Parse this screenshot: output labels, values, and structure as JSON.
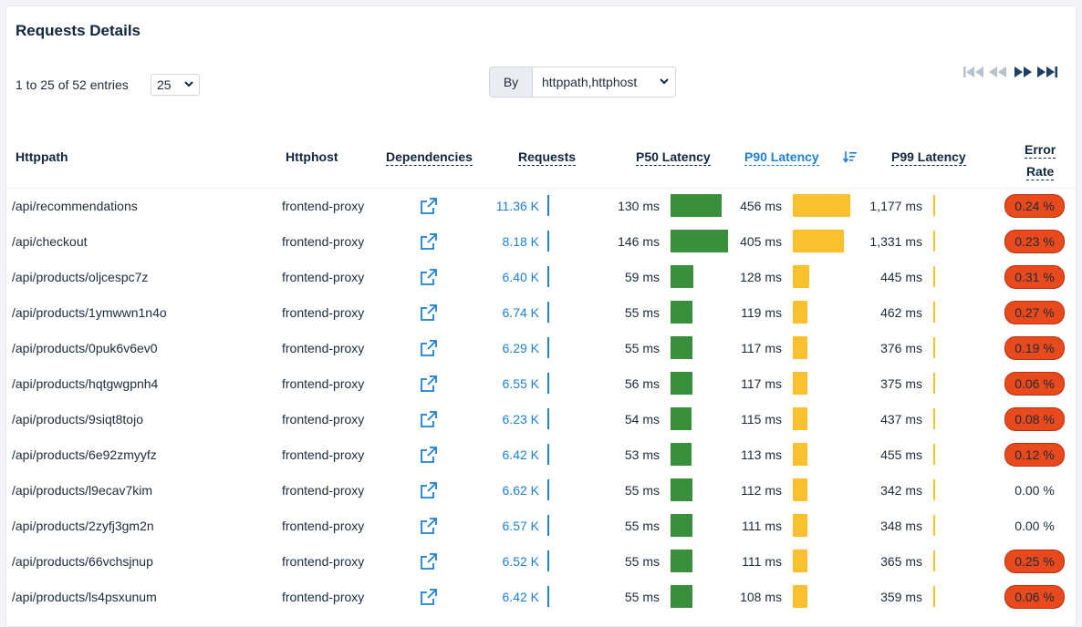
{
  "title": "Requests Details",
  "entries_text": "1 to 25 of 52 entries",
  "page_size": "25",
  "group_by": {
    "label": "By",
    "value": "httppath,httphost"
  },
  "columns": {
    "path": "Httppath",
    "host": "Httphost",
    "deps": "Dependencies",
    "requests": "Requests",
    "p50": "P50 Latency",
    "p90": "P90 Latency",
    "p99": "P99 Latency",
    "error_line1": "Error",
    "error_line2": "Rate"
  },
  "sorted_column": "p90",
  "colors": {
    "accent": "#1f7fd1",
    "p50": "#3a8f3d",
    "p90": "#fbc02d",
    "error": "#e8491d"
  },
  "icons": {
    "dependency": "external-link-icon",
    "sort": "sort-desc-icon"
  },
  "rows": [
    {
      "path": "/api/recommendations",
      "host": "frontend-proxy",
      "requests": "11.36 K",
      "p50": "130 ms",
      "p50_ms": 130,
      "p90": "456 ms",
      "p90_ms": 456,
      "p99": "1,177 ms",
      "error": "0.24 %",
      "error_high": true
    },
    {
      "path": "/api/checkout",
      "host": "frontend-proxy",
      "requests": "8.18 K",
      "p50": "146 ms",
      "p50_ms": 146,
      "p90": "405 ms",
      "p90_ms": 405,
      "p99": "1,331 ms",
      "error": "0.23 %",
      "error_high": true
    },
    {
      "path": "/api/products/oljcespc7z",
      "host": "frontend-proxy",
      "requests": "6.40 K",
      "p50": "59 ms",
      "p50_ms": 59,
      "p90": "128 ms",
      "p90_ms": 128,
      "p99": "445 ms",
      "error": "0.31 %",
      "error_high": true
    },
    {
      "path": "/api/products/1ymwwn1n4o",
      "host": "frontend-proxy",
      "requests": "6.74 K",
      "p50": "55 ms",
      "p50_ms": 55,
      "p90": "119 ms",
      "p90_ms": 119,
      "p99": "462 ms",
      "error": "0.27 %",
      "error_high": true
    },
    {
      "path": "/api/products/0puk6v6ev0",
      "host": "frontend-proxy",
      "requests": "6.29 K",
      "p50": "55 ms",
      "p50_ms": 55,
      "p90": "117 ms",
      "p90_ms": 117,
      "p99": "376 ms",
      "error": "0.19 %",
      "error_high": true
    },
    {
      "path": "/api/products/hqtgwgpnh4",
      "host": "frontend-proxy",
      "requests": "6.55 K",
      "p50": "56 ms",
      "p50_ms": 56,
      "p90": "117 ms",
      "p90_ms": 117,
      "p99": "375 ms",
      "error": "0.06 %",
      "error_high": true
    },
    {
      "path": "/api/products/9siqt8tojo",
      "host": "frontend-proxy",
      "requests": "6.23 K",
      "p50": "54 ms",
      "p50_ms": 54,
      "p90": "115 ms",
      "p90_ms": 115,
      "p99": "437 ms",
      "error": "0.08 %",
      "error_high": true
    },
    {
      "path": "/api/products/6e92zmyyfz",
      "host": "frontend-proxy",
      "requests": "6.42 K",
      "p50": "53 ms",
      "p50_ms": 53,
      "p90": "113 ms",
      "p90_ms": 113,
      "p99": "455 ms",
      "error": "0.12 %",
      "error_high": true
    },
    {
      "path": "/api/products/l9ecav7kim",
      "host": "frontend-proxy",
      "requests": "6.62 K",
      "p50": "55 ms",
      "p50_ms": 55,
      "p90": "112 ms",
      "p90_ms": 112,
      "p99": "342 ms",
      "error": "0.00 %",
      "error_high": false
    },
    {
      "path": "/api/products/2zyfj3gm2n",
      "host": "frontend-proxy",
      "requests": "6.57 K",
      "p50": "55 ms",
      "p50_ms": 55,
      "p90": "111 ms",
      "p90_ms": 111,
      "p99": "348 ms",
      "error": "0.00 %",
      "error_high": false
    },
    {
      "path": "/api/products/66vchsjnup",
      "host": "frontend-proxy",
      "requests": "6.52 K",
      "p50": "55 ms",
      "p50_ms": 55,
      "p90": "111 ms",
      "p90_ms": 111,
      "p99": "365 ms",
      "error": "0.25 %",
      "error_high": true
    },
    {
      "path": "/api/products/ls4psxunum",
      "host": "frontend-proxy",
      "requests": "6.42 K",
      "p50": "55 ms",
      "p50_ms": 55,
      "p90": "108 ms",
      "p90_ms": 108,
      "p99": "359 ms",
      "error": "0.06 %",
      "error_high": true
    }
  ]
}
